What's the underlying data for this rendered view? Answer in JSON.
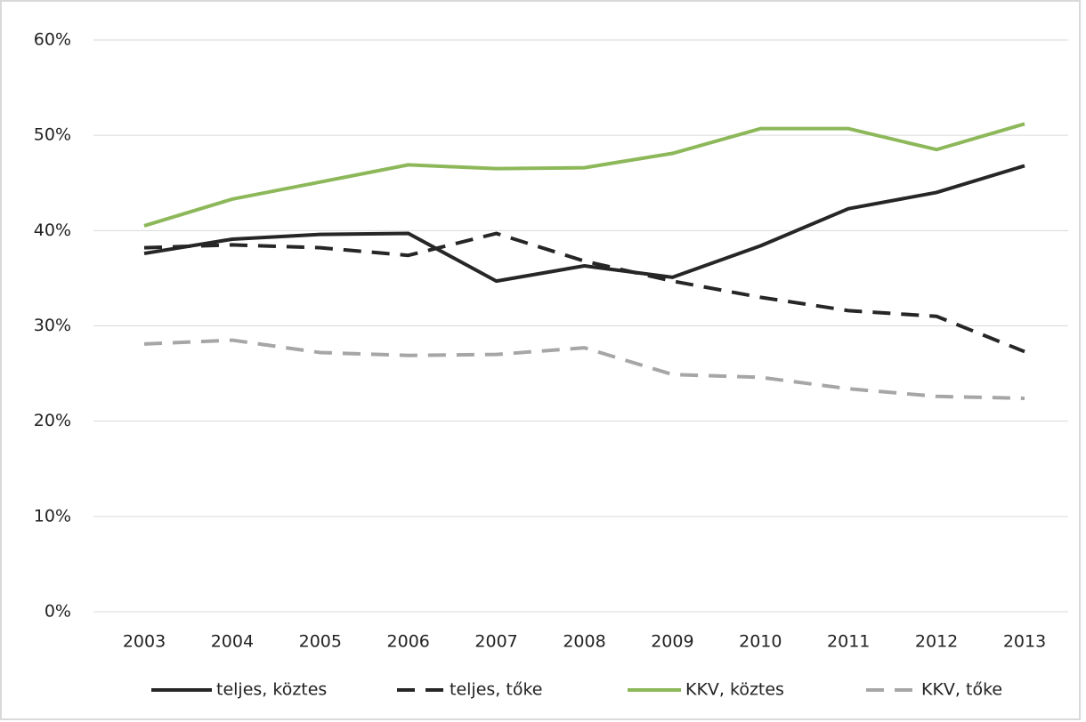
{
  "chart_data": {
    "type": "line",
    "categories": [
      "2003",
      "2004",
      "2005",
      "2006",
      "2007",
      "2008",
      "2009",
      "2010",
      "2011",
      "2012",
      "2013"
    ],
    "ylim": [
      0,
      60
    ],
    "yticks": [
      {
        "value": 0,
        "label": "0%"
      },
      {
        "value": 10,
        "label": "10%"
      },
      {
        "value": 20,
        "label": "20%"
      },
      {
        "value": 30,
        "label": "30%"
      },
      {
        "value": 40,
        "label": "40%"
      },
      {
        "value": 50,
        "label": "50%"
      },
      {
        "value": 60,
        "label": "60%"
      }
    ],
    "grid": true,
    "legend": "bottom",
    "series": [
      {
        "name": "teljes, köztes",
        "color": "#262626",
        "dashed": false,
        "values": [
          37.6,
          39.1,
          39.6,
          39.7,
          34.7,
          36.3,
          35.1,
          38.4,
          42.3,
          44.0,
          46.8
        ]
      },
      {
        "name": "teljes, tőke",
        "color": "#262626",
        "dashed": true,
        "values": [
          38.2,
          38.5,
          38.2,
          37.4,
          39.7,
          36.8,
          34.7,
          33.0,
          31.6,
          31.0,
          27.3
        ]
      },
      {
        "name": "KKV, köztes",
        "color": "#8db85a",
        "dashed": false,
        "values": [
          40.5,
          43.3,
          45.1,
          46.9,
          46.5,
          46.6,
          48.1,
          50.7,
          50.7,
          48.5,
          51.2
        ]
      },
      {
        "name": "KKV, tőke",
        "color": "#a6a6a6",
        "dashed": true,
        "values": [
          28.1,
          28.5,
          27.2,
          26.9,
          27.0,
          27.7,
          24.9,
          24.6,
          23.4,
          22.6,
          22.4
        ]
      }
    ]
  }
}
